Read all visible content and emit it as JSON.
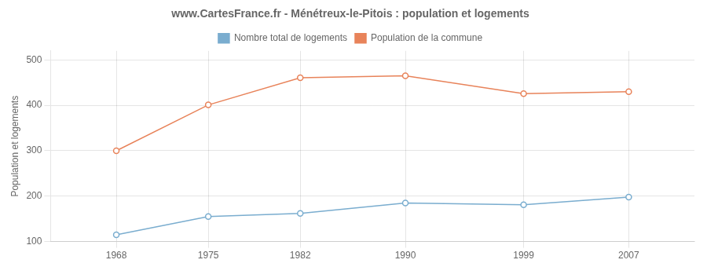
{
  "chart_data": {
    "type": "line",
    "title": "www.CartesFrance.fr - Ménétreux-le-Pitois : population et logements",
    "ylabel": "Population et logements",
    "x": [
      1968,
      1975,
      1982,
      1990,
      1999,
      2007
    ],
    "series": [
      {
        "name": "Nombre total de logements",
        "color": "#7aadcf",
        "values": [
          115,
          155,
          162,
          185,
          181,
          198
        ]
      },
      {
        "name": "Population de la commune",
        "color": "#e8835a",
        "values": [
          300,
          401,
          461,
          465,
          426,
          430
        ]
      }
    ],
    "xlim": [
      1963,
      2012
    ],
    "xticks": [
      1968,
      1975,
      1982,
      1990,
      1999,
      2007
    ],
    "ylim": [
      100,
      520
    ],
    "yticks": [
      100,
      200,
      300,
      400,
      500
    ],
    "grid": true,
    "legend": "top",
    "marker": "o"
  }
}
